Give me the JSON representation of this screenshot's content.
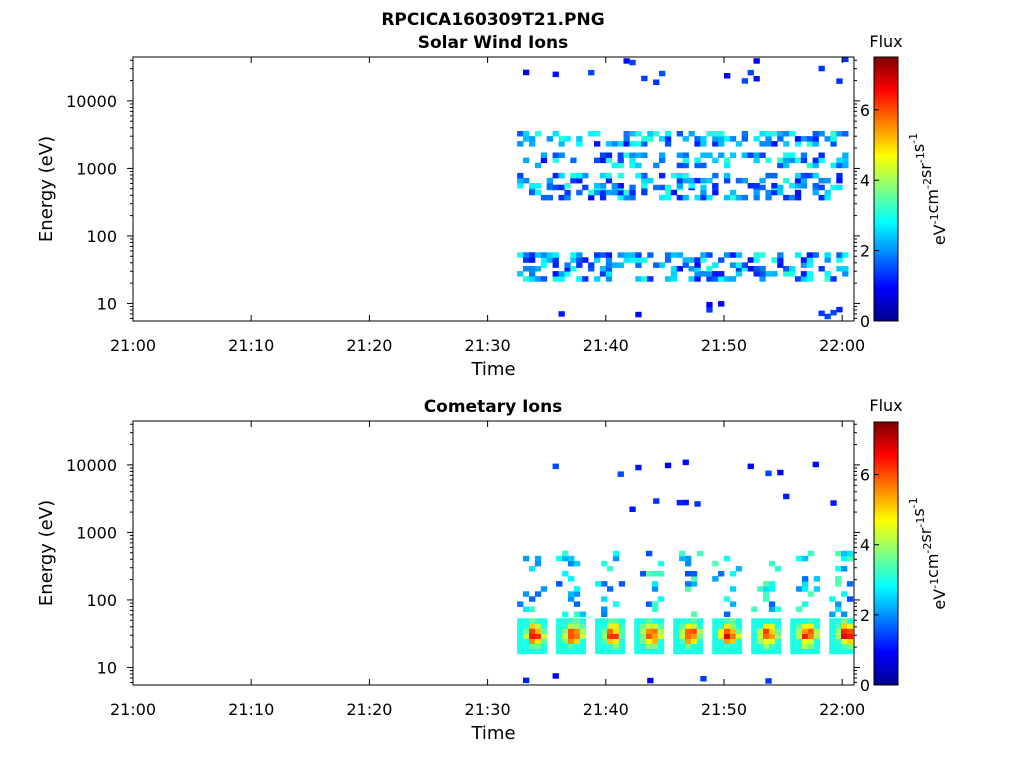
{
  "figure_title": "RPCICA160309T21.PNG",
  "colorbar": {
    "label": "Flux",
    "unit_main": "eV",
    "unit_parts": [
      {
        "t": "eV",
        "sup": "-1"
      },
      {
        "t": "cm",
        "sup": "-2"
      },
      {
        "t": "sr",
        "sup": "-1"
      },
      {
        "t": "s",
        "sup": "-1"
      }
    ],
    "ticks": [
      "0",
      "2",
      "4",
      "6"
    ],
    "range": [
      0,
      7.5
    ],
    "colormap": [
      "#00008f",
      "#0000ff",
      "#0080ff",
      "#00ffff",
      "#80ff80",
      "#ffff00",
      "#ff8000",
      "#ff0000",
      "#800000"
    ]
  },
  "chart_data": [
    {
      "type": "heatmap",
      "title": "Solar Wind Ions",
      "xlabel": "Time",
      "ylabel": "Energy (eV)",
      "xticks": [
        "21:00",
        "21:10",
        "21:20",
        "21:30",
        "21:40",
        "21:50",
        "22:00"
      ],
      "xlim_minutes": [
        0,
        61
      ],
      "yticks": [
        "10",
        "100",
        "1000",
        "10000"
      ],
      "ylim_log10": [
        0.74,
        4.65
      ],
      "yscale": "log",
      "data_start_minute": 32.5,
      "features": [
        {
          "kind": "energy_bands",
          "energies_eV": [
            25,
            40,
            400,
            600,
            1200,
            2500
          ],
          "flux_range": [
            1.0,
            3.2
          ]
        },
        {
          "kind": "isolated_counts",
          "energies_eV": [
            6,
            8,
            20000,
            30000
          ],
          "flux_range": [
            0.8,
            1.5
          ]
        }
      ]
    },
    {
      "type": "heatmap",
      "title": "Cometary Ions",
      "xlabel": "Time",
      "ylabel": "Energy (eV)",
      "xticks": [
        "21:00",
        "21:10",
        "21:20",
        "21:30",
        "21:40",
        "21:50",
        "22:00"
      ],
      "xlim_minutes": [
        0,
        61
      ],
      "yticks": [
        "10",
        "100",
        "1000",
        "10000"
      ],
      "ylim_log10": [
        0.74,
        4.65
      ],
      "yscale": "log",
      "data_start_minute": 32.5,
      "features": [
        {
          "kind": "periodic_bursts",
          "period_minutes": 3.3,
          "peak_energy_eV": 28,
          "peak_flux": 7.0,
          "tail_up_to_eV": 500
        },
        {
          "kind": "isolated_counts",
          "energies_eV": [
            6,
            2500,
            8000
          ],
          "flux_range": [
            0.8,
            1.5
          ]
        }
      ]
    }
  ]
}
